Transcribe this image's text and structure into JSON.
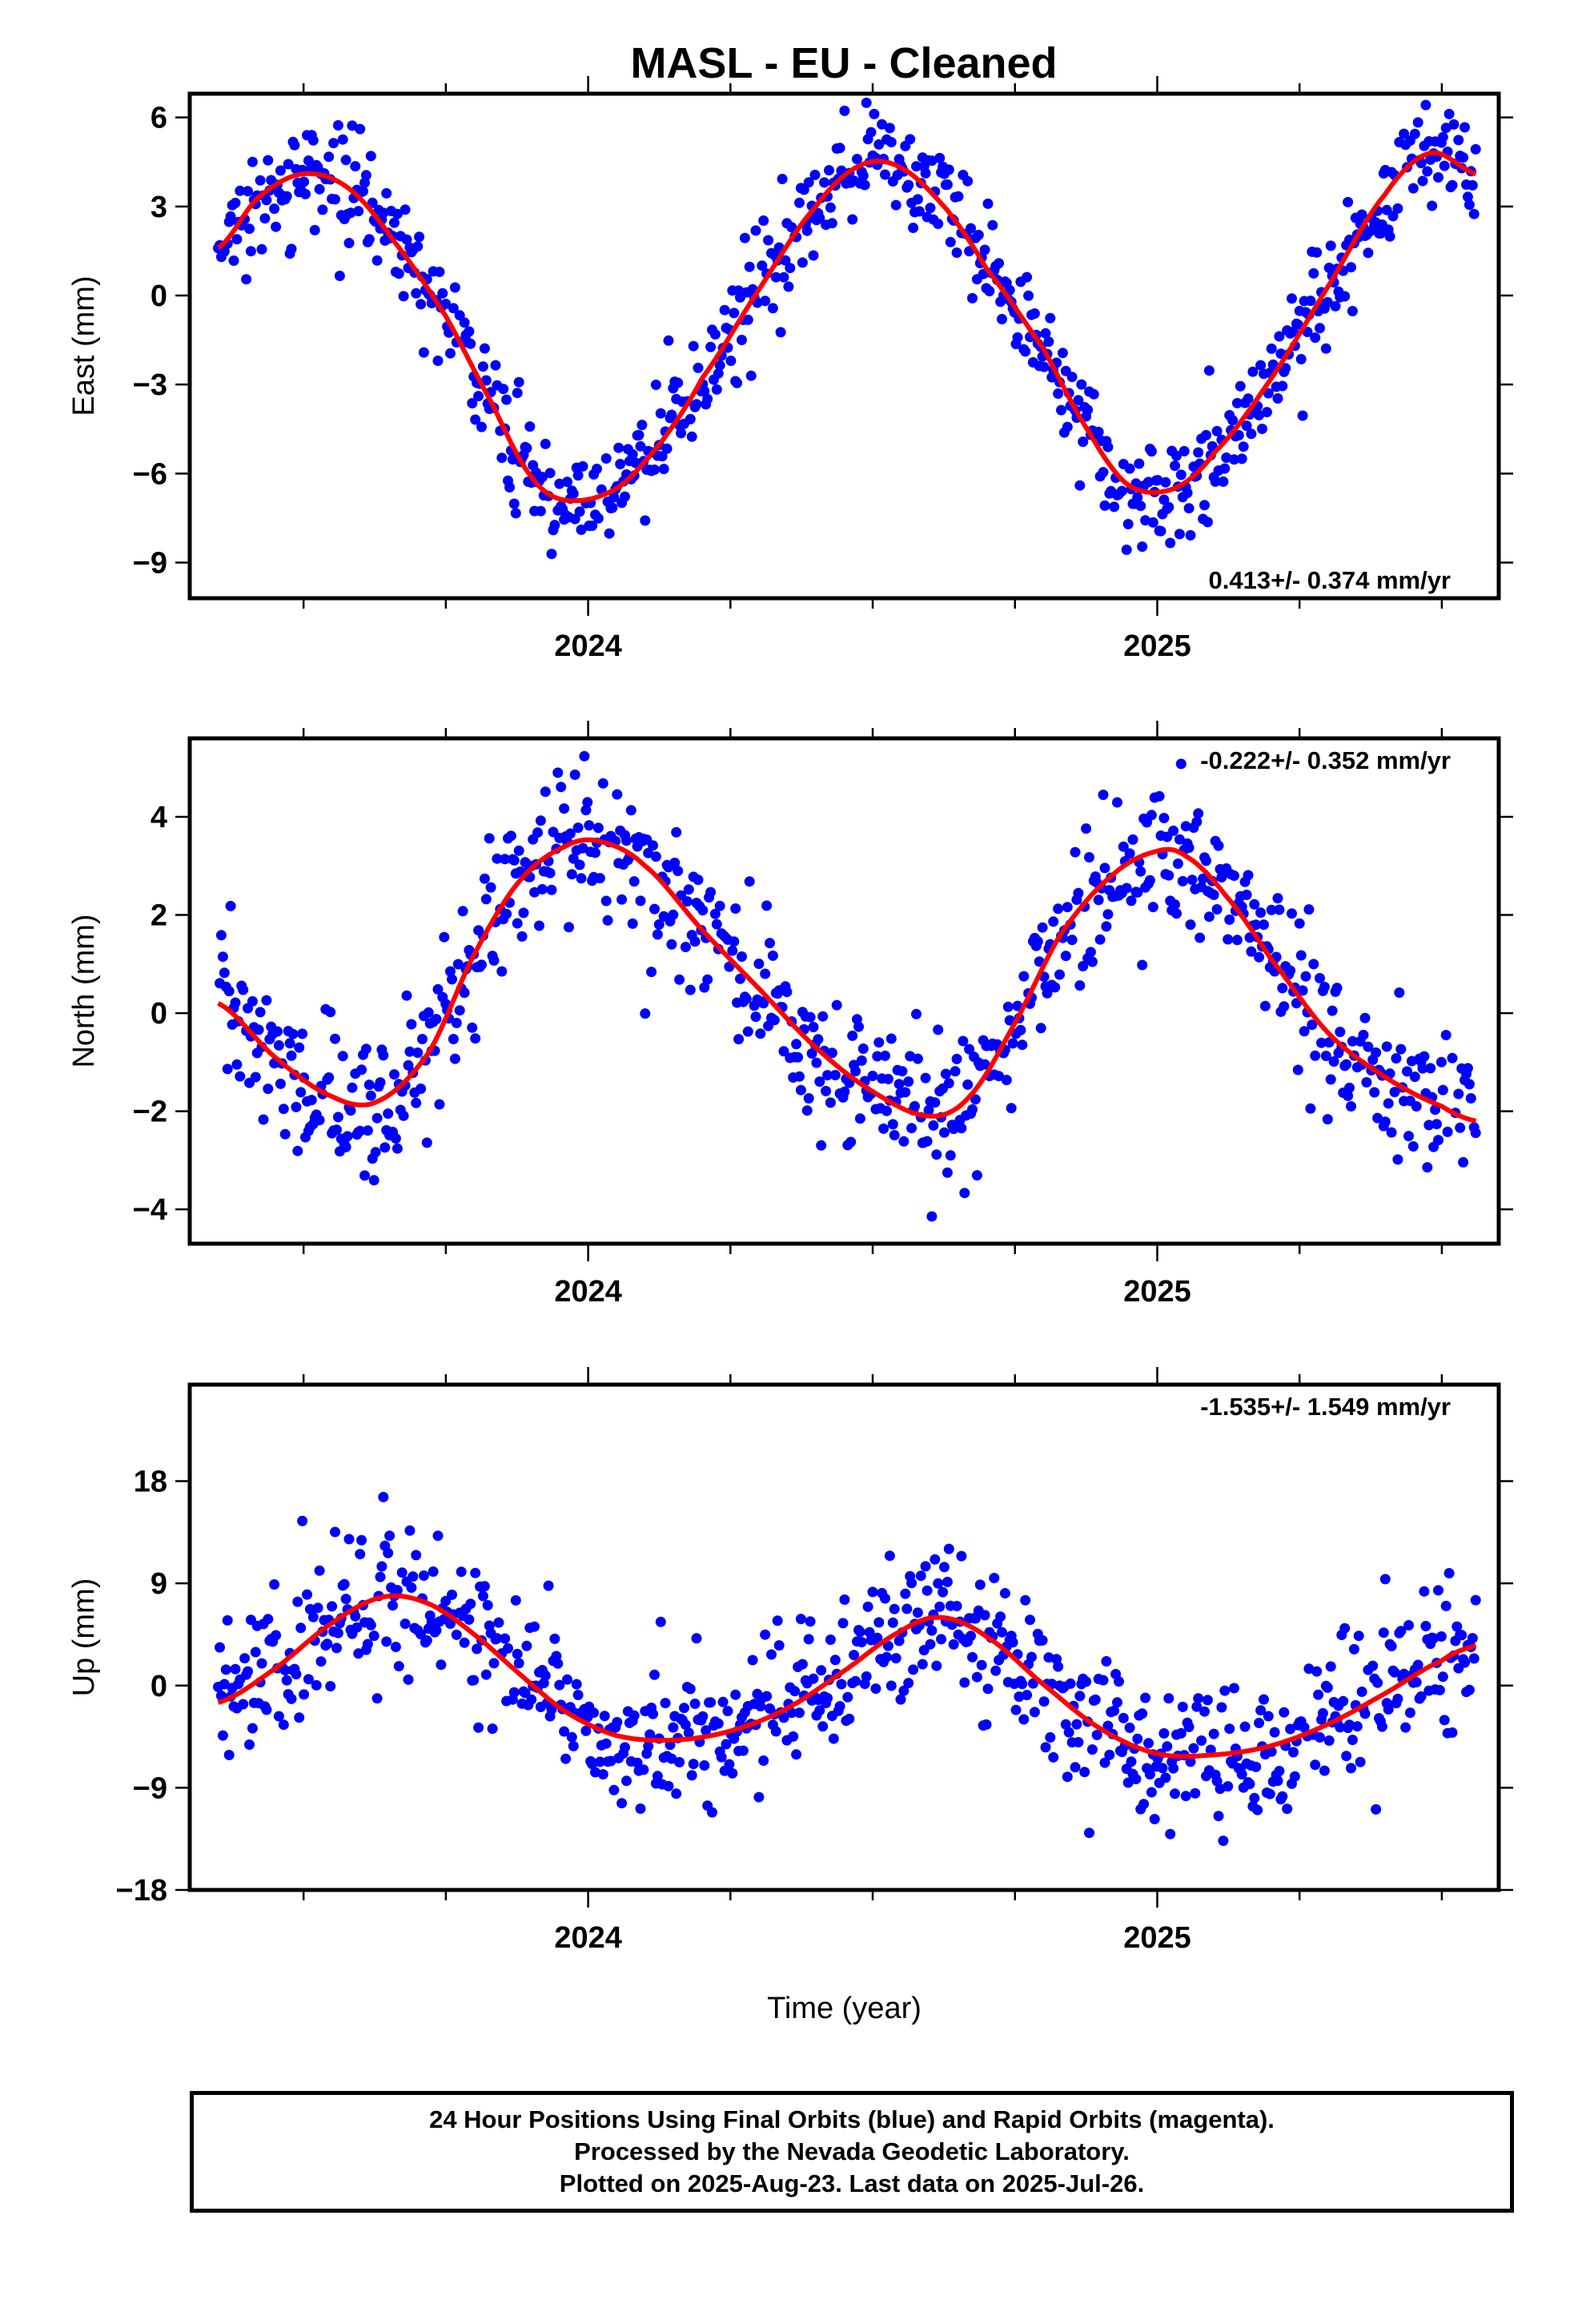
{
  "title": "MASL  - EU - Cleaned",
  "caption": {
    "line1": "24 Hour Positions Using Final Orbits (blue) and Rapid Orbits (magenta).",
    "line2": "Processed by the Nevada Geodetic Laboratory.",
    "line3": "Plotted on 2025-Aug-23. Last data on 2025-Jul-26."
  },
  "colors": {
    "points": "#0000ff",
    "fit": "#ff0000",
    "frame": "#000000"
  },
  "chart_data": [
    {
      "type": "scatter",
      "ylabel": "East (mm)",
      "xlabel": "",
      "rate_label": "0.413+/- 0.374 mm/yr",
      "rate_position": "bottom-right",
      "xlim": [
        2023.3,
        2025.6
      ],
      "ylim": [
        -10.2,
        6.8
      ],
      "yticks": [
        -9,
        -6,
        -3,
        0,
        3,
        6
      ],
      "ytick_labels": [
        "−9",
        "−6",
        "−3",
        "0",
        "3",
        "6"
      ],
      "xticks": [
        2024,
        2025
      ],
      "xtick_labels": [
        "2024",
        "2025"
      ],
      "series": [
        {
          "name": "",
          "kind": "points",
          "x_start": 2023.35,
          "x_end": 2025.56,
          "scatter_std": 0.9,
          "x": [
            2023.35,
            2023.42,
            2023.5,
            2023.58,
            2023.66,
            2023.75,
            2023.83,
            2023.9,
            2023.96,
            2024.05,
            2024.13,
            2024.2,
            2024.3,
            2024.4,
            2024.48,
            2024.55,
            2024.63,
            2024.7,
            2024.8,
            2024.88,
            2024.95,
            2025.03,
            2025.1,
            2025.2,
            2025.3,
            2025.4,
            2025.48,
            2025.56
          ],
          "y": [
            1.6,
            3.3,
            4.1,
            3.6,
            1.8,
            -0.7,
            -3.6,
            -6.1,
            -6.9,
            -6.5,
            -4.9,
            -2.8,
            0.2,
            3.0,
            4.4,
            4.3,
            2.9,
            0.9,
            -1.8,
            -4.6,
            -6.4,
            -6.5,
            -5.3,
            -2.8,
            0.3,
            3.4,
            4.8,
            4.1
          ]
        },
        {
          "name": "",
          "kind": "fit",
          "x": [
            2023.35,
            2023.42,
            2023.5,
            2023.58,
            2023.66,
            2023.75,
            2023.83,
            2023.9,
            2023.96,
            2024.05,
            2024.13,
            2024.2,
            2024.3,
            2024.4,
            2024.48,
            2024.55,
            2024.63,
            2024.7,
            2024.8,
            2024.88,
            2024.95,
            2025.03,
            2025.1,
            2025.2,
            2025.3,
            2025.4,
            2025.48,
            2025.56
          ],
          "y": [
            1.6,
            3.3,
            4.1,
            3.6,
            1.8,
            -0.7,
            -3.6,
            -6.1,
            -6.9,
            -6.5,
            -4.9,
            -2.8,
            0.2,
            3.0,
            4.4,
            4.3,
            2.9,
            0.9,
            -1.8,
            -4.6,
            -6.4,
            -6.5,
            -5.3,
            -2.8,
            0.3,
            3.4,
            4.8,
            4.1
          ]
        }
      ]
    },
    {
      "type": "scatter",
      "ylabel": "North (mm)",
      "xlabel": "",
      "rate_label": "-0.222+/- 0.352 mm/yr",
      "rate_position": "top-right",
      "xlim": [
        2023.3,
        2025.6
      ],
      "ylim": [
        -4.7,
        5.6
      ],
      "yticks": [
        -4,
        -2,
        0,
        2,
        4
      ],
      "ytick_labels": [
        "−4",
        "−2",
        "0",
        "2",
        "4"
      ],
      "xticks": [
        2024,
        2025
      ],
      "xtick_labels": [
        "2024",
        "2025"
      ],
      "series": [
        {
          "name": "",
          "kind": "points",
          "x_start": 2023.35,
          "x_end": 2025.56,
          "scatter_std": 0.75,
          "x": [
            2023.35,
            2023.45,
            2023.55,
            2023.63,
            2023.72,
            2023.8,
            2023.88,
            2023.96,
            2024.02,
            2024.1,
            2024.2,
            2024.3,
            2024.4,
            2024.5,
            2024.6,
            2024.67,
            2024.75,
            2024.83,
            2024.92,
            2025.0,
            2025.05,
            2025.12,
            2025.2,
            2025.3,
            2025.4,
            2025.5,
            2025.56
          ],
          "y": [
            0.2,
            -0.9,
            -1.7,
            -1.8,
            -0.8,
            1.2,
            2.7,
            3.4,
            3.5,
            3.0,
            1.7,
            0.5,
            -0.7,
            -1.6,
            -2.1,
            -1.7,
            -0.2,
            1.6,
            2.8,
            3.3,
            3.2,
            2.4,
            1.1,
            -0.4,
            -1.3,
            -1.9,
            -2.2
          ]
        },
        {
          "name": "",
          "kind": "fit",
          "x": [
            2023.35,
            2023.45,
            2023.55,
            2023.63,
            2023.72,
            2023.8,
            2023.88,
            2023.96,
            2024.02,
            2024.1,
            2024.2,
            2024.3,
            2024.4,
            2024.5,
            2024.6,
            2024.67,
            2024.75,
            2024.83,
            2024.92,
            2025.0,
            2025.05,
            2025.12,
            2025.2,
            2025.3,
            2025.4,
            2025.5,
            2025.56
          ],
          "y": [
            0.2,
            -0.9,
            -1.7,
            -1.8,
            -0.8,
            1.2,
            2.7,
            3.4,
            3.5,
            3.0,
            1.7,
            0.5,
            -0.7,
            -1.6,
            -2.1,
            -1.7,
            -0.2,
            1.6,
            2.8,
            3.3,
            3.2,
            2.4,
            1.1,
            -0.4,
            -1.3,
            -1.9,
            -2.2
          ]
        }
      ]
    },
    {
      "type": "scatter",
      "ylabel": "Up (mm)",
      "xlabel": "Time (year)",
      "rate_label": "-1.535+/- 1.549 mm/yr",
      "rate_position": "top-right",
      "xlim": [
        2023.3,
        2025.6
      ],
      "ylim": [
        -18,
        26.5
      ],
      "yticks": [
        -18,
        -9,
        0,
        9,
        18
      ],
      "ytick_labels": [
        "−18",
        "−9",
        "0",
        "9",
        "18"
      ],
      "xticks": [
        2024,
        2025
      ],
      "xtick_labels": [
        "2024",
        "2025"
      ],
      "series": [
        {
          "name": "",
          "kind": "points",
          "x_start": 2023.35,
          "x_end": 2025.56,
          "scatter_std": 3.2,
          "x": [
            2023.35,
            2023.45,
            2023.55,
            2023.64,
            2023.72,
            2023.8,
            2023.88,
            2023.96,
            2024.05,
            2024.15,
            2024.25,
            2024.35,
            2024.45,
            2024.55,
            2024.62,
            2024.7,
            2024.8,
            2024.9,
            2025.0,
            2025.1,
            2025.2,
            2025.3,
            2025.4,
            2025.5,
            2025.56
          ],
          "y": [
            -1.5,
            1.5,
            5.5,
            7.8,
            7.2,
            4.5,
            1.0,
            -2.3,
            -4.4,
            -4.8,
            -4.0,
            -2.0,
            1.3,
            4.8,
            6.0,
            4.3,
            0.1,
            -3.8,
            -6.0,
            -6.1,
            -5.3,
            -3.4,
            -0.7,
            2.2,
            3.5
          ]
        },
        {
          "name": "",
          "kind": "fit",
          "x": [
            2023.35,
            2023.45,
            2023.55,
            2023.64,
            2023.72,
            2023.8,
            2023.88,
            2023.96,
            2024.05,
            2024.15,
            2024.25,
            2024.35,
            2024.45,
            2024.55,
            2024.62,
            2024.7,
            2024.8,
            2024.9,
            2025.0,
            2025.1,
            2025.2,
            2025.3,
            2025.4,
            2025.5,
            2025.56
          ],
          "y": [
            -1.5,
            1.5,
            5.5,
            7.8,
            7.2,
            4.5,
            1.0,
            -2.3,
            -4.4,
            -4.8,
            -4.0,
            -2.0,
            1.3,
            4.8,
            6.0,
            4.3,
            0.1,
            -3.8,
            -6.0,
            -6.1,
            -5.3,
            -3.4,
            -0.7,
            2.2,
            3.5
          ]
        }
      ]
    }
  ]
}
